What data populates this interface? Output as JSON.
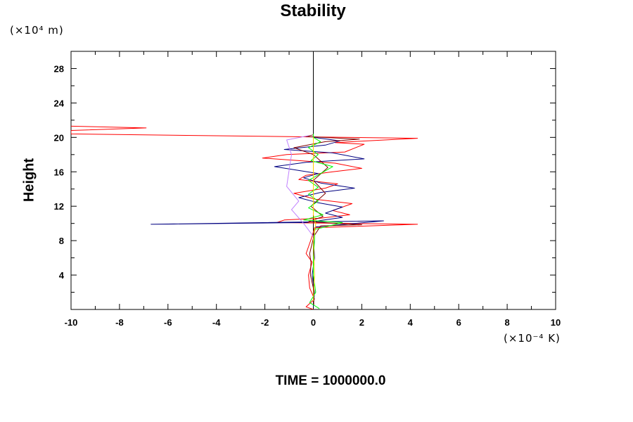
{
  "chart_data": {
    "type": "line",
    "title": "Stability",
    "xlabel": "",
    "ylabel": "Height",
    "x_units_label": "(×10⁻⁴ K)",
    "y_units_label": "(×10⁴ m)",
    "footer": "TIME = 1000000.0",
    "xlim": [
      -10,
      10
    ],
    "ylim": [
      0,
      30
    ],
    "x_ticks": [
      -10,
      -8,
      -6,
      -4,
      -2,
      0,
      2,
      4,
      6,
      8,
      10
    ],
    "y_ticks": [
      4,
      8,
      12,
      16,
      20,
      24,
      28
    ],
    "grid": false,
    "zero_line": {
      "x": 0,
      "color": "#000000"
    },
    "series": [
      {
        "color": "#ff0000",
        "points": [
          [
            0,
            0
          ],
          [
            -0.3,
            0.3
          ],
          [
            0.05,
            1.2
          ],
          [
            -0.15,
            2.5
          ],
          [
            -0.2,
            4
          ],
          [
            -0.05,
            5.5
          ],
          [
            -0.3,
            6.5
          ],
          [
            -0.05,
            8.5
          ],
          [
            0.05,
            9.5
          ],
          [
            4.3,
            9.9
          ],
          [
            -1.5,
            10.1
          ],
          [
            -1.2,
            10.4
          ],
          [
            0.3,
            10.6
          ],
          [
            1.5,
            11
          ],
          [
            0.8,
            11.5
          ],
          [
            1.6,
            12.3
          ],
          [
            0.1,
            12.8
          ],
          [
            -0.8,
            13.5
          ],
          [
            0.5,
            14.1
          ],
          [
            1.0,
            14.6
          ],
          [
            -0.6,
            15.1
          ],
          [
            -0.3,
            15.6
          ],
          [
            0.8,
            16
          ],
          [
            2.0,
            16.4
          ],
          [
            0.9,
            17
          ],
          [
            -2.1,
            17.6
          ],
          [
            -1.1,
            18
          ],
          [
            1.3,
            18.3
          ],
          [
            2.1,
            19.2
          ],
          [
            0.9,
            19.4
          ],
          [
            4.3,
            19.9
          ],
          [
            -10,
            20.4
          ],
          [
            -10,
            20.8
          ],
          [
            -6.9,
            21.1
          ],
          [
            -10,
            21.3
          ]
        ]
      },
      {
        "color": "#000080",
        "points": [
          [
            0,
            0.3
          ],
          [
            0.05,
            2
          ],
          [
            -0.05,
            4
          ],
          [
            0.05,
            6
          ],
          [
            0,
            8.5
          ],
          [
            0.1,
            9.6
          ],
          [
            2.9,
            10.3
          ],
          [
            -6.7,
            9.9
          ],
          [
            -0.3,
            10.1
          ],
          [
            1.2,
            10.7
          ],
          [
            0.5,
            11.2
          ],
          [
            1.2,
            11.9
          ],
          [
            0.2,
            12.4
          ],
          [
            -0.6,
            13
          ],
          [
            0.3,
            13.6
          ],
          [
            1.7,
            14.1
          ],
          [
            0.3,
            14.7
          ],
          [
            -0.4,
            15.3
          ],
          [
            0.2,
            15.8
          ],
          [
            -1.6,
            16.6
          ],
          [
            -0.3,
            17.1
          ],
          [
            2.1,
            17.5
          ],
          [
            0.8,
            18.2
          ],
          [
            -1.2,
            18.6
          ],
          [
            0.5,
            19.1
          ],
          [
            1.1,
            19.6
          ],
          [
            0,
            20
          ]
        ]
      },
      {
        "color": "#800000",
        "points": [
          [
            0.02,
            0.5
          ],
          [
            0,
            2.5
          ],
          [
            -0.12,
            4
          ],
          [
            -0.1,
            5.5
          ],
          [
            -0.15,
            6.5
          ],
          [
            0.02,
            8.5
          ],
          [
            0.3,
            9.7
          ],
          [
            2.0,
            9.85
          ],
          [
            -0.2,
            10.2
          ],
          [
            0.4,
            10.8
          ],
          [
            -0.1,
            12
          ],
          [
            0.5,
            13.5
          ],
          [
            0,
            15
          ],
          [
            0.6,
            16.5
          ],
          [
            0,
            18
          ],
          [
            -0.8,
            18.8
          ],
          [
            0.5,
            19.5
          ],
          [
            1.9,
            19.8
          ],
          [
            -0.3,
            20.1
          ],
          [
            0,
            20.3
          ]
        ]
      },
      {
        "color": "#00ff00",
        "points": [
          [
            0.25,
            0.1
          ],
          [
            -0.15,
            0.8
          ],
          [
            0.1,
            2
          ],
          [
            0,
            4
          ],
          [
            0,
            6
          ],
          [
            0.05,
            8
          ],
          [
            0.05,
            9.3
          ],
          [
            0.5,
            9.6
          ],
          [
            1.2,
            10.1
          ],
          [
            -0.4,
            10.4
          ],
          [
            0.4,
            11
          ],
          [
            -0.2,
            11.8
          ],
          [
            0.2,
            12.6
          ],
          [
            -0.2,
            13.4
          ],
          [
            0.2,
            14.2
          ],
          [
            -0.2,
            15
          ],
          [
            0.3,
            15.8
          ],
          [
            0.8,
            16.6
          ],
          [
            -0.1,
            17.3
          ],
          [
            0.2,
            18
          ],
          [
            -0.2,
            18.8
          ],
          [
            0.3,
            19.5
          ],
          [
            0,
            20
          ],
          [
            0,
            20.4
          ]
        ]
      },
      {
        "color": "#c080ff",
        "points": [
          [
            0,
            8.5
          ],
          [
            -0.4,
            10
          ],
          [
            -0.9,
            11.6
          ],
          [
            -0.6,
            12.6
          ],
          [
            -1.1,
            14.3
          ],
          [
            -1.0,
            16.2
          ],
          [
            -0.9,
            18
          ],
          [
            -1.1,
            19.7
          ],
          [
            -0.2,
            20.2
          ]
        ]
      },
      {
        "color": "#ffd000",
        "points": [
          [
            0,
            1
          ],
          [
            0.05,
            4
          ],
          [
            0,
            8
          ],
          [
            0.1,
            9.9
          ],
          [
            0,
            11
          ],
          [
            0,
            20
          ]
        ]
      }
    ]
  }
}
